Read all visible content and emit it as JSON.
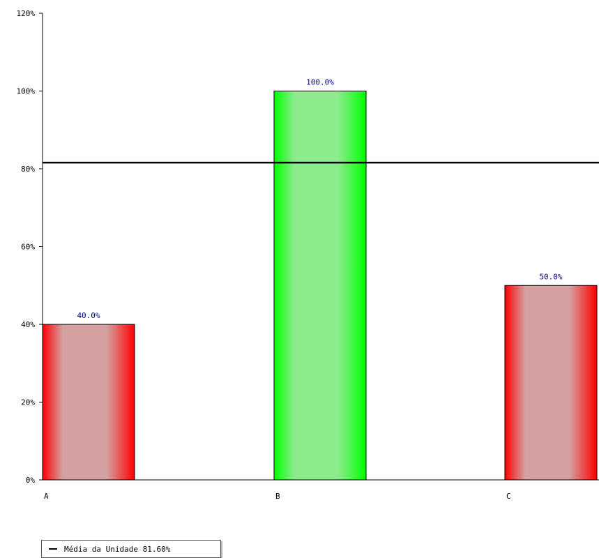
{
  "chart_data": {
    "type": "bar",
    "categories": [
      "A",
      "B",
      "C"
    ],
    "values": [
      40.0,
      100.0,
      50.0
    ],
    "value_labels": [
      "40.0%",
      "100.0%",
      "50.0%"
    ],
    "bar_colors": [
      "#ff0000",
      "#00ff00",
      "#ff0000"
    ],
    "ylim": [
      0,
      120
    ],
    "yticks": [
      0,
      20,
      40,
      60,
      80,
      100,
      120
    ],
    "ytick_labels": [
      "0%",
      "20%",
      "40%",
      "60%",
      "80%",
      "100%",
      "120%"
    ],
    "reference_line": {
      "value": 81.6,
      "color": "#000000"
    },
    "legend": {
      "label": "Média da Unidade 81.60%",
      "position": "bottom-left"
    },
    "label_color": "#000080",
    "grid": false
  }
}
